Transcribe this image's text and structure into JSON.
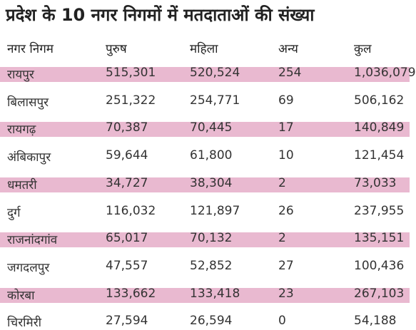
{
  "header": {
    "title": "प्रदेश के 10 नगर निगमों में मतदाताओं की संख्या"
  },
  "table": {
    "columns": [
      "नगर निगम",
      "पुरुष",
      "महिला",
      "अन्य",
      "कुल"
    ],
    "rows": [
      [
        "रायपुर",
        "515,301",
        "520,524",
        "254",
        "1,036,079"
      ],
      [
        "बिलासपुर",
        "251,322",
        "254,771",
        "69",
        "506,162"
      ],
      [
        "रायगढ़",
        "70,387",
        "70,445",
        "17",
        "140,849"
      ],
      [
        "अंबिकापुर",
        "59,644",
        "61,800",
        "10",
        "121,454"
      ],
      [
        "धमतरी",
        "34,727",
        "38,304",
        "2",
        "73,033"
      ],
      [
        "दुर्ग",
        "116,032",
        "121,897",
        "26",
        "237,955"
      ],
      [
        "राजनांदगांव",
        "65,017",
        "70,132",
        "2",
        "135,151"
      ],
      [
        "जगदलपुर",
        "47,557",
        "52,852",
        "27",
        "100,436"
      ],
      [
        "कोरबा",
        "133,662",
        "133,418",
        "23",
        "267,103"
      ],
      [
        "चिरमिरी",
        "27,594",
        "26,594",
        "0",
        "54,188"
      ]
    ]
  }
}
